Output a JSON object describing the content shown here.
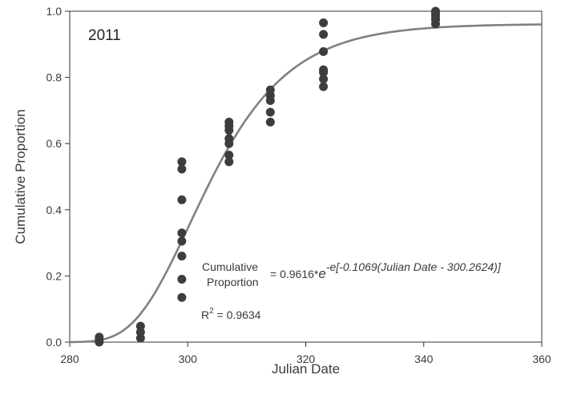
{
  "chart_data": {
    "type": "scatter",
    "title": "",
    "panel_label": "2011",
    "xlabel": "Julian Date",
    "ylabel": "Cumulative Proportion",
    "xlim": [
      280,
      360
    ],
    "ylim": [
      0,
      1.0
    ],
    "x_ticks": [
      "280",
      "300",
      "320",
      "340",
      "360"
    ],
    "y_ticks": [
      "0.0",
      "0.2",
      "0.4",
      "0.6",
      "0.8",
      "1.0"
    ],
    "grid": false,
    "legend": "none",
    "colors": {
      "points": "#3d3d3d",
      "curve": "#808080",
      "axis": "#333333"
    },
    "points": [
      {
        "x": 285,
        "y": 0.0
      },
      {
        "x": 285,
        "y": 0.007
      },
      {
        "x": 285,
        "y": 0.015
      },
      {
        "x": 292,
        "y": 0.012
      },
      {
        "x": 292,
        "y": 0.03
      },
      {
        "x": 292,
        "y": 0.048
      },
      {
        "x": 299,
        "y": 0.135
      },
      {
        "x": 299,
        "y": 0.19
      },
      {
        "x": 299,
        "y": 0.26
      },
      {
        "x": 299,
        "y": 0.305
      },
      {
        "x": 299,
        "y": 0.33
      },
      {
        "x": 299,
        "y": 0.43
      },
      {
        "x": 299,
        "y": 0.523
      },
      {
        "x": 299,
        "y": 0.545
      },
      {
        "x": 307,
        "y": 0.545
      },
      {
        "x": 307,
        "y": 0.565
      },
      {
        "x": 307,
        "y": 0.6
      },
      {
        "x": 307,
        "y": 0.615
      },
      {
        "x": 307,
        "y": 0.64
      },
      {
        "x": 307,
        "y": 0.653
      },
      {
        "x": 307,
        "y": 0.665
      },
      {
        "x": 314,
        "y": 0.665
      },
      {
        "x": 314,
        "y": 0.695
      },
      {
        "x": 314,
        "y": 0.73
      },
      {
        "x": 314,
        "y": 0.745
      },
      {
        "x": 314,
        "y": 0.762
      },
      {
        "x": 323,
        "y": 0.772
      },
      {
        "x": 323,
        "y": 0.795
      },
      {
        "x": 323,
        "y": 0.815
      },
      {
        "x": 323,
        "y": 0.823
      },
      {
        "x": 323,
        "y": 0.878
      },
      {
        "x": 323,
        "y": 0.93
      },
      {
        "x": 323,
        "y": 0.965
      },
      {
        "x": 342,
        "y": 0.962
      },
      {
        "x": 342,
        "y": 0.975
      },
      {
        "x": 342,
        "y": 0.985
      },
      {
        "x": 342,
        "y": 0.993
      },
      {
        "x": 342,
        "y": 1.0
      }
    ],
    "fit": {
      "a": 0.9616,
      "b": 0.1069,
      "c": 300.2624,
      "r2": 0.9634
    },
    "equation": {
      "lhs_line1": "Cumulative",
      "lhs_line2": "Proportion",
      "rhs_main": " = 0.9616*",
      "rhs_e": "e",
      "rhs_exp": "-e[-0.1069(Julian Date - 300.2624)]"
    },
    "r2_label": {
      "r": "R",
      "sup": "2",
      "rest": " = 0.9634"
    }
  }
}
